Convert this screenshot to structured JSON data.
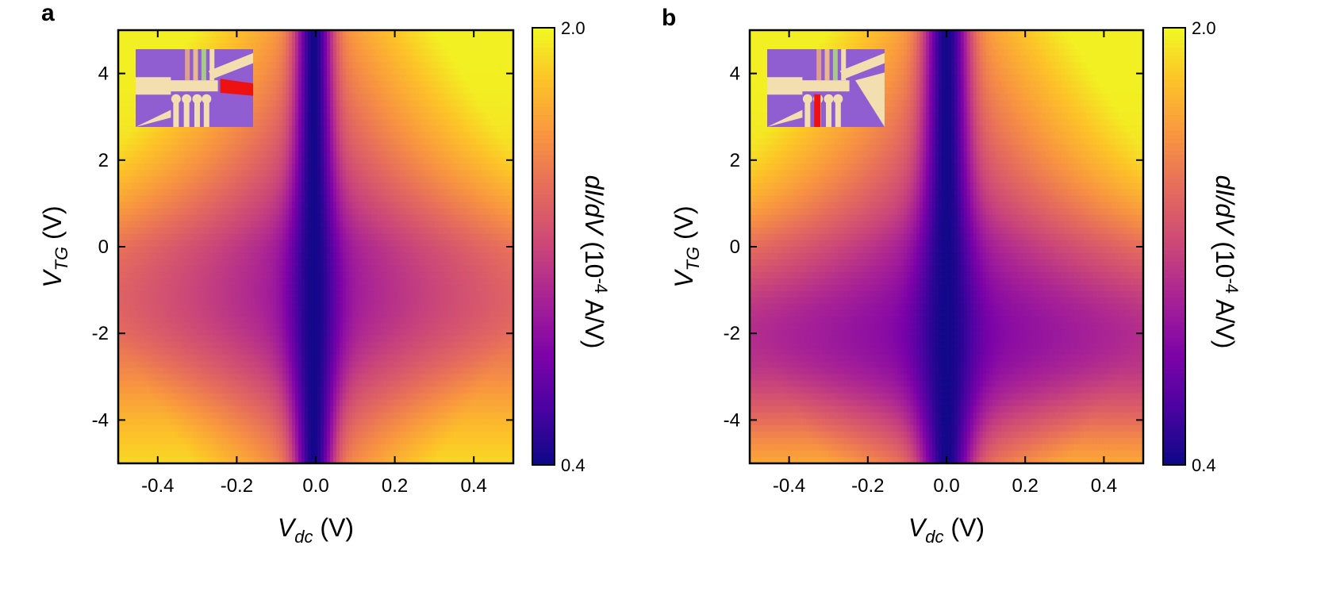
{
  "chart_data": [
    {
      "type": "heatmap",
      "panel_label": "a",
      "xlabel": {
        "main": "V",
        "sub": "dc",
        "unit": " (V)"
      },
      "ylabel": {
        "main": "V",
        "sub": "TG",
        "unit": " (V)"
      },
      "xlim": [
        -0.5,
        0.5
      ],
      "ylim": [
        -5,
        5
      ],
      "x_ticks": [
        -0.4,
        -0.2,
        0.0,
        0.2,
        0.4
      ],
      "x_tick_labels": [
        "-0.4",
        "-0.2",
        "0.0",
        "0.2",
        "0.4"
      ],
      "y_ticks": [
        4,
        2,
        0,
        -2,
        -4
      ],
      "y_tick_labels": [
        "4",
        "2",
        "0",
        "-2",
        "-4"
      ],
      "colorbar": {
        "label_prefix": "dI/dV (10",
        "label_exp": "-4",
        "label_suffix": " A/V)",
        "min": 0.4,
        "max": 2.0,
        "min_label": "0.4",
        "max_label": "2.0",
        "colormap": "plasma"
      },
      "field": {
        "edge_value": 1.95,
        "dip_width": 0.045,
        "dip_center_x": -0.005,
        "gate_min_y": -1.5,
        "gate_suppression": 0.22
      },
      "inset": {
        "description": "device optical image",
        "highlighted_contact": "right lead (red)"
      }
    },
    {
      "type": "heatmap",
      "panel_label": "b",
      "xlabel": {
        "main": "V",
        "sub": "dc",
        "unit": " (V)"
      },
      "ylabel": {
        "main": "V",
        "sub": "TG",
        "unit": " (V)"
      },
      "xlim": [
        -0.5,
        0.5
      ],
      "ylim": [
        -5,
        5
      ],
      "x_ticks": [
        -0.4,
        -0.2,
        0.0,
        0.2,
        0.4
      ],
      "x_tick_labels": [
        "-0.4",
        "-0.2",
        "0.0",
        "0.2",
        "0.4"
      ],
      "y_ticks": [
        4,
        2,
        0,
        -2,
        -4
      ],
      "y_tick_labels": [
        "4",
        "2",
        "0",
        "-2",
        "-4"
      ],
      "colorbar": {
        "label_prefix": "dI/dV (10",
        "label_exp": "-4",
        "label_suffix": " A/V)",
        "min": 0.4,
        "max": 2.0,
        "min_label": "0.4",
        "max_label": "2.0",
        "colormap": "plasma"
      },
      "field": {
        "edge_value": 1.95,
        "dip_width": 0.055,
        "dip_center_x": 0.0,
        "gate_min_y": -2.2,
        "gate_suppression": 0.35
      },
      "inset": {
        "description": "device optical image",
        "highlighted_contact": "bottom lead (red)"
      }
    }
  ]
}
